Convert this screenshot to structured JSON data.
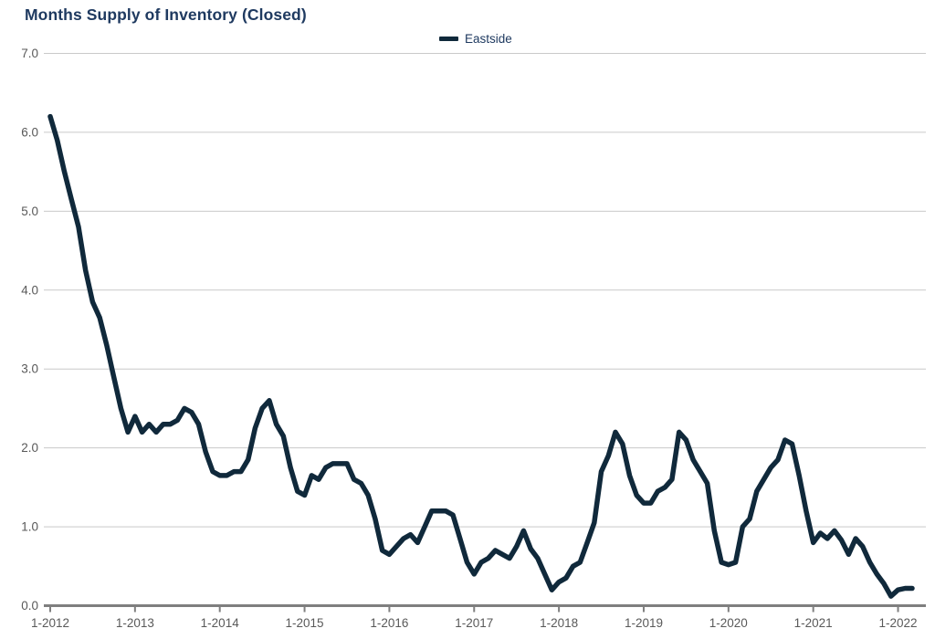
{
  "title": "Months Supply of Inventory (Closed)",
  "legend": {
    "label": "Eastside"
  },
  "colors": {
    "title_text": "#1f3a60",
    "legend_text": "#1f3a60",
    "line": "#10293b",
    "gridline": "#c9c9c9",
    "axis": "#7f7f7f",
    "tick_text": "#595959",
    "background": "#ffffff"
  },
  "chart_data": {
    "type": "line",
    "title": "Months Supply of Inventory (Closed)",
    "xlabel": "",
    "ylabel": "",
    "ylim": [
      0,
      7
    ],
    "grid": "horizontal",
    "legend_position": "top-center",
    "y_tick_labels": [
      "7.0",
      "6.0",
      "5.0",
      "4.0",
      "3.0",
      "2.0",
      "1.0",
      "0.0"
    ],
    "x_tick_labels": [
      "1-2012",
      "1-2013",
      "1-2014",
      "1-2015",
      "1-2016",
      "1-2017",
      "1-2018",
      "1-2019",
      "1-2020",
      "1-2021",
      "1-2022"
    ],
    "x_start_month": "2012-01",
    "x_interval": "monthly",
    "series": [
      {
        "name": "Eastside",
        "values": [
          6.2,
          5.9,
          5.5,
          5.15,
          4.8,
          4.25,
          3.85,
          3.65,
          3.3,
          2.9,
          2.5,
          2.2,
          2.4,
          2.2,
          2.3,
          2.2,
          2.3,
          2.3,
          2.35,
          2.5,
          2.45,
          2.3,
          1.95,
          1.7,
          1.65,
          1.65,
          1.7,
          1.7,
          1.85,
          2.25,
          2.5,
          2.6,
          2.3,
          2.15,
          1.75,
          1.45,
          1.4,
          1.65,
          1.6,
          1.75,
          1.8,
          1.8,
          1.8,
          1.6,
          1.55,
          1.4,
          1.1,
          0.7,
          0.65,
          0.75,
          0.85,
          0.9,
          0.8,
          1.0,
          1.2,
          1.2,
          1.2,
          1.15,
          0.85,
          0.55,
          0.4,
          0.55,
          0.6,
          0.7,
          0.65,
          0.6,
          0.75,
          0.95,
          0.72,
          0.6,
          0.4,
          0.2,
          0.3,
          0.35,
          0.5,
          0.55,
          0.8,
          1.05,
          1.7,
          1.9,
          2.2,
          2.05,
          1.65,
          1.4,
          1.3,
          1.3,
          1.45,
          1.5,
          1.6,
          2.2,
          2.1,
          1.85,
          1.7,
          1.55,
          0.95,
          0.55,
          0.52,
          0.55,
          1.0,
          1.1,
          1.45,
          1.6,
          1.75,
          1.85,
          2.1,
          2.05,
          1.65,
          1.2,
          0.8,
          0.92,
          0.85,
          0.95,
          0.83,
          0.65,
          0.85,
          0.75,
          0.55,
          0.4,
          0.28,
          0.12,
          0.2,
          0.22,
          0.22
        ]
      }
    ]
  }
}
